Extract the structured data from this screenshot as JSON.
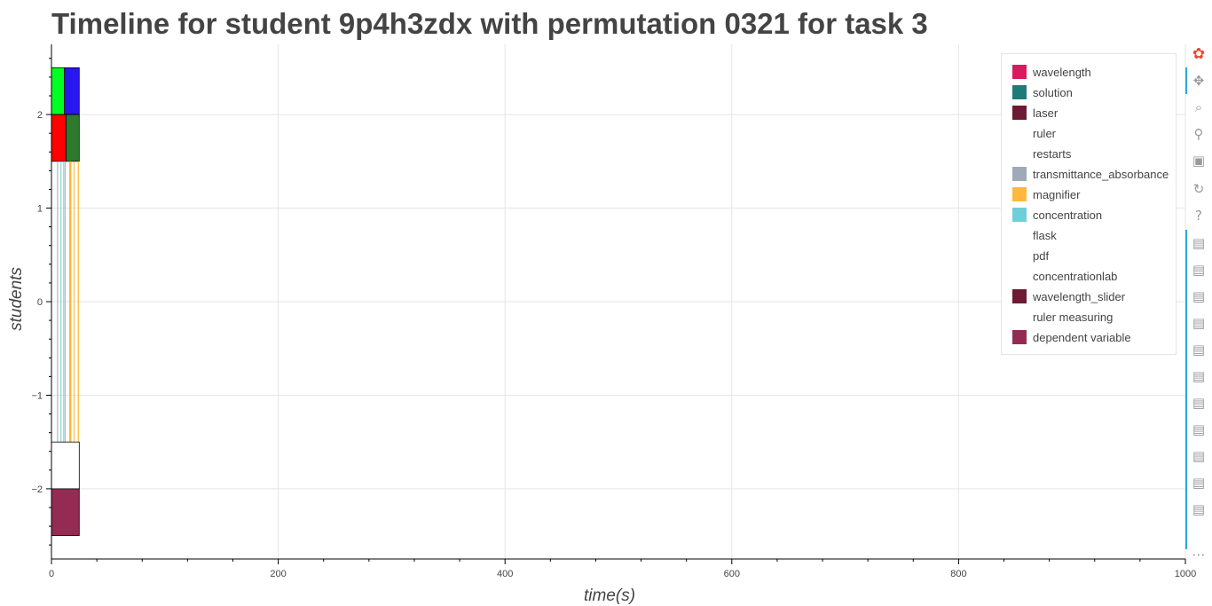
{
  "title": "Timeline for student 9p4h3zdx with permutation 0321 for task 3",
  "chart_data": {
    "type": "bar",
    "orientation": "horizontal-timeline",
    "title": "Timeline for student 9p4h3zdx with permutation 0321 for task 3",
    "xlabel": "time(s)",
    "ylabel": "students",
    "xlim": [
      0,
      1000
    ],
    "ylim": [
      -2.75,
      2.75
    ],
    "x_ticks": [
      "0",
      "200",
      "400",
      "600",
      "800",
      "1000"
    ],
    "y_ticks": [
      "−2",
      "−1",
      "0",
      "1",
      "2"
    ],
    "grid": true,
    "legend_position": "top-right",
    "series": [
      {
        "name": "wavelength",
        "color": "#d81b60"
      },
      {
        "name": "solution",
        "color": "#1e7b78"
      },
      {
        "name": "laser",
        "color": "#6d1a34"
      },
      {
        "name": "ruler",
        "color": "#ffffff"
      },
      {
        "name": "restarts",
        "color": "#ffffff"
      },
      {
        "name": "transmittance_absorbance",
        "color": "#9eaab8"
      },
      {
        "name": "magnifier",
        "color": "#fdb93e"
      },
      {
        "name": "concentration",
        "color": "#6ecfda"
      },
      {
        "name": "flask",
        "color": "#ffffff"
      },
      {
        "name": "pdf",
        "color": "#ffffff"
      },
      {
        "name": "concentrationlab",
        "color": "#ffffff"
      },
      {
        "name": "wavelength_slider",
        "color": "#6d1a34"
      },
      {
        "name": "ruler measuring",
        "color": "#ffffff"
      },
      {
        "name": "dependent variable",
        "color": "#942b52"
      }
    ],
    "bars": [
      {
        "y_lo": 2.0,
        "y_hi": 2.5,
        "x_start": 0,
        "x_end": 11.5,
        "color": "#00ff22",
        "outline": true
      },
      {
        "y_lo": 2.0,
        "y_hi": 2.5,
        "x_start": 11.5,
        "x_end": 24.5,
        "color": "#2a16ef",
        "outline": true
      },
      {
        "y_lo": 1.5,
        "y_hi": 2.0,
        "x_start": 0,
        "x_end": 12.8,
        "color": "#ff0000",
        "outline": true
      },
      {
        "y_lo": 1.5,
        "y_hi": 2.0,
        "x_start": 12.8,
        "x_end": 24.5,
        "color": "#2e7a2d",
        "outline": true
      },
      {
        "y_lo": -1.5,
        "y_hi": 1.5,
        "x_start": 5.0,
        "x_end": 5.8,
        "color": "#9eaab8",
        "outline": false
      },
      {
        "y_lo": -1.5,
        "y_hi": 1.5,
        "x_start": 8.0,
        "x_end": 8.8,
        "color": "#6ecfda",
        "outline": false
      },
      {
        "y_lo": -1.5,
        "y_hi": 1.5,
        "x_start": 10.5,
        "x_end": 11.3,
        "color": "#9eaab8",
        "outline": false
      },
      {
        "y_lo": -1.5,
        "y_hi": 1.5,
        "x_start": 11.8,
        "x_end": 12.6,
        "color": "#6ecfda",
        "outline": false
      },
      {
        "y_lo": -1.5,
        "y_hi": 1.5,
        "x_start": 15.6,
        "x_end": 17.6,
        "color": "#fdb93e",
        "outline": false
      },
      {
        "y_lo": -1.5,
        "y_hi": 1.5,
        "x_start": 19.5,
        "x_end": 20.3,
        "color": "#fdb93e",
        "outline": false
      },
      {
        "y_lo": -1.5,
        "y_hi": 1.5,
        "x_start": 23.2,
        "x_end": 24.2,
        "color": "#fdb93e",
        "outline": false
      },
      {
        "y_lo": -2.0,
        "y_hi": -1.5,
        "x_start": 0,
        "x_end": 24.5,
        "color": "#ffffff",
        "outline": true
      },
      {
        "y_lo": -2.5,
        "y_hi": -2.0,
        "x_start": 0,
        "x_end": 24.5,
        "color": "#942b52",
        "outline": true
      }
    ]
  },
  "toolbar": {
    "tools": [
      {
        "icon": "bokeh-logo-icon",
        "glyph": "✿"
      },
      {
        "icon": "pan-icon",
        "glyph": "✥"
      },
      {
        "icon": "box-zoom-icon",
        "glyph": "⌕"
      },
      {
        "icon": "wheel-zoom-icon",
        "glyph": "⚲"
      },
      {
        "icon": "save-icon",
        "glyph": "▣"
      },
      {
        "icon": "reset-icon",
        "glyph": "↻"
      },
      {
        "icon": "help-icon",
        "glyph": "?"
      },
      {
        "icon": "hover-icon",
        "glyph": "▤"
      },
      {
        "icon": "hover-icon",
        "glyph": "▤"
      },
      {
        "icon": "hover-icon",
        "glyph": "▤"
      },
      {
        "icon": "hover-icon",
        "glyph": "▤"
      },
      {
        "icon": "hover-icon",
        "glyph": "▤"
      },
      {
        "icon": "hover-icon",
        "glyph": "▤"
      },
      {
        "icon": "hover-icon",
        "glyph": "▤"
      },
      {
        "icon": "hover-icon",
        "glyph": "▤"
      },
      {
        "icon": "hover-icon",
        "glyph": "▤"
      },
      {
        "icon": "hover-icon",
        "glyph": "▤"
      },
      {
        "icon": "hover-icon",
        "glyph": "▤"
      },
      {
        "icon": "more-icon",
        "glyph": "⋯"
      }
    ]
  }
}
